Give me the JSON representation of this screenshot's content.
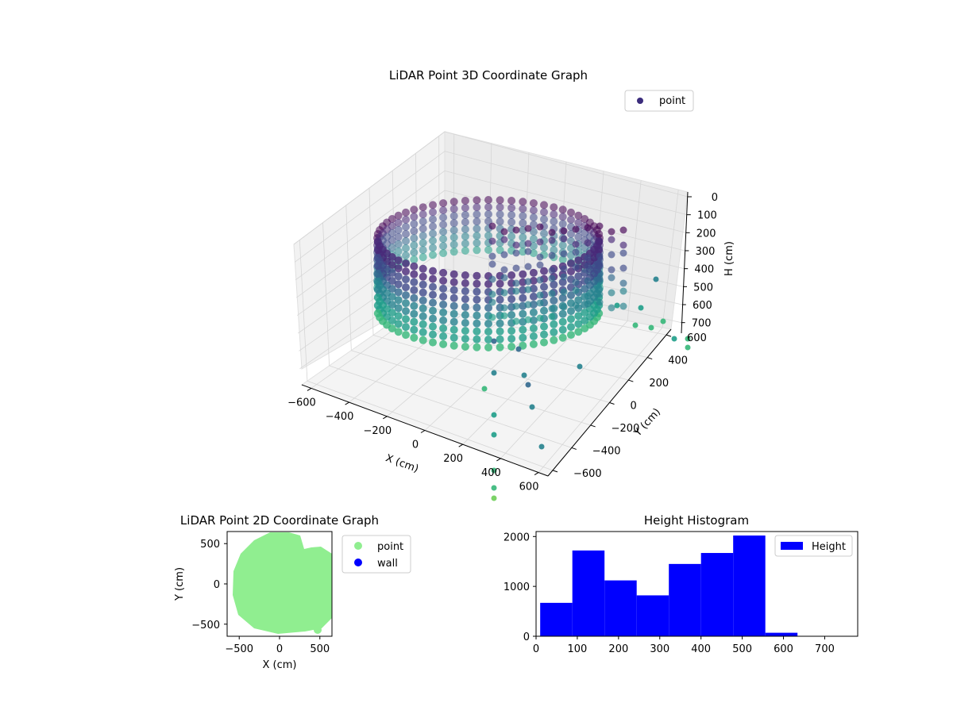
{
  "chart_data": [
    {
      "type": "scatter",
      "projection": "3d",
      "title": "LiDAR Point 3D Coordinate Graph",
      "xlabel": "X (cm)",
      "ylabel": "Y (cm)",
      "zlabel": "H (cm)",
      "xlim": [
        -650,
        650
      ],
      "ylim": [
        -650,
        650
      ],
      "zlim": [
        750,
        0
      ],
      "xticks": [
        "−600",
        "−400",
        "−200",
        "0",
        "200",
        "400",
        "600"
      ],
      "yticks": [
        "−600",
        "−400",
        "−200",
        "0",
        "200",
        "400",
        "600"
      ],
      "zticks": [
        "0",
        "100",
        "200",
        "300",
        "400",
        "500",
        "600",
        "700"
      ],
      "series": [
        {
          "name": "point",
          "colormap": "viridis",
          "color": "#3b2c7c"
        }
      ],
      "legend": "upper right",
      "grid": true
    },
    {
      "type": "scatter",
      "title": "LiDAR Point 2D Coordinate Graph",
      "xlabel": "X (cm)",
      "ylabel": "Y (cm)",
      "xlim": [
        -650,
        650
      ],
      "ylim": [
        -650,
        650
      ],
      "xticks": [
        "−500",
        "0",
        "500"
      ],
      "yticks": [
        "500",
        "0",
        "−500"
      ],
      "series": [
        {
          "name": "point",
          "color": "#90ee90"
        },
        {
          "name": "wall",
          "color": "#0000ff"
        }
      ],
      "legend": "outside right"
    },
    {
      "type": "bar",
      "title": "Height Histogram",
      "series": [
        {
          "name": "Height",
          "color": "#0000ff"
        }
      ],
      "bins": [
        [
          10,
          88,
          670
        ],
        [
          88,
          166,
          1720
        ],
        [
          166,
          244,
          1120
        ],
        [
          244,
          322,
          820
        ],
        [
          322,
          400,
          1450
        ],
        [
          400,
          478,
          1670
        ],
        [
          478,
          556,
          2020
        ],
        [
          556,
          634,
          70
        ]
      ],
      "xlim": [
        0,
        780
      ],
      "ylim": [
        0,
        2100
      ],
      "xticks": [
        "0",
        "100",
        "200",
        "300",
        "400",
        "500",
        "600",
        "700"
      ],
      "yticks": [
        "0",
        "1000",
        "2000"
      ],
      "legend": "upper right"
    }
  ]
}
